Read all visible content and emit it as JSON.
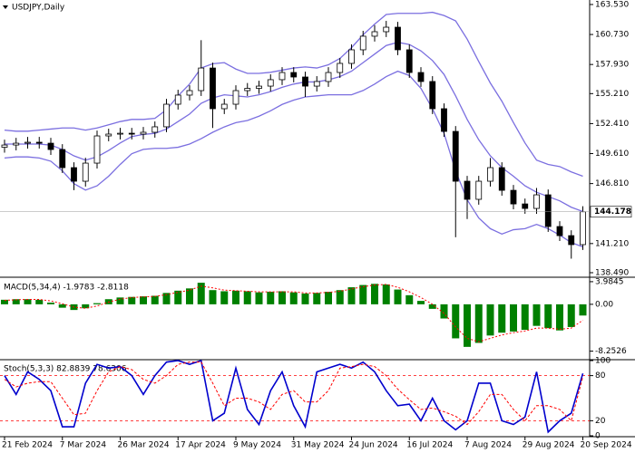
{
  "chart_data": [
    {
      "type": "candlestick",
      "title": "USDJPY,Daily",
      "categories": [
        "21 Feb 2024",
        null,
        null,
        null,
        null,
        "7 Mar 2024",
        null,
        null,
        null,
        null,
        "26 Mar 2024",
        null,
        null,
        null,
        null,
        "17 Apr 2024",
        null,
        null,
        null,
        null,
        "9 May 2024",
        null,
        null,
        null,
        null,
        "31 May 2024",
        null,
        null,
        null,
        null,
        "24 Jun 2024",
        null,
        null,
        null,
        null,
        "16 Jul 2024",
        null,
        null,
        null,
        null,
        "7 Aug 2024",
        null,
        null,
        null,
        null,
        "29 Aug 2024",
        null,
        null,
        null,
        null,
        "20 Sep 2024"
      ],
      "open": [
        150.2,
        150.41,
        150.58,
        150.67,
        150.58,
        149.99,
        148.3,
        147.03,
        148.72,
        151.26,
        151.43,
        151.51,
        151.43,
        151.6,
        152.11,
        154.22,
        155.07,
        155.49,
        157.6,
        153.8,
        154.22,
        155.49,
        155.7,
        155.91,
        156.51,
        157.18,
        156.76,
        155.91,
        156.34,
        157.18,
        158.03,
        159.3,
        160.57,
        160.99,
        161.41,
        159.3,
        157.18,
        156.34,
        153.8,
        151.68,
        147.03,
        145.34,
        147.03,
        148.3,
        146.18,
        144.91,
        144.49,
        145.76,
        142.8,
        141.95,
        141.11
      ],
      "high": [
        150.91,
        151.08,
        151.17,
        151.17,
        151.08,
        150.49,
        148.8,
        149.22,
        151.76,
        151.93,
        152.01,
        152.01,
        152.1,
        152.61,
        154.72,
        155.57,
        155.99,
        160.2,
        158.1,
        154.72,
        155.99,
        156.2,
        156.41,
        157.01,
        157.68,
        157.68,
        157.26,
        156.84,
        157.68,
        158.53,
        159.8,
        161.07,
        161.6,
        162.0,
        161.91,
        159.8,
        157.68,
        156.84,
        154.3,
        152.18,
        147.53,
        147.53,
        149.2,
        148.8,
        146.68,
        145.41,
        146.4,
        146.26,
        143.3,
        142.45,
        144.7
      ],
      "low": [
        149.7,
        149.91,
        150.08,
        150.08,
        149.49,
        147.8,
        146.2,
        146.53,
        148.22,
        150.76,
        150.93,
        150.93,
        150.93,
        151.1,
        151.61,
        153.72,
        154.57,
        154.99,
        152.0,
        153.3,
        153.72,
        154.99,
        155.2,
        155.41,
        156.01,
        156.26,
        154.9,
        155.41,
        155.84,
        156.68,
        157.53,
        158.8,
        160.07,
        160.49,
        158.8,
        156.68,
        155.84,
        153.3,
        151.18,
        141.8,
        143.5,
        144.84,
        146.53,
        145.68,
        144.41,
        143.99,
        143.99,
        142.3,
        141.45,
        139.8,
        140.61
      ],
      "close": [
        150.41,
        150.58,
        150.67,
        150.58,
        149.99,
        148.3,
        147.03,
        148.72,
        151.26,
        151.43,
        151.51,
        151.43,
        151.6,
        152.11,
        154.22,
        155.07,
        155.49,
        157.6,
        153.8,
        154.22,
        155.49,
        155.7,
        155.91,
        156.51,
        157.18,
        156.76,
        155.91,
        156.34,
        157.18,
        158.03,
        159.3,
        160.57,
        160.99,
        161.41,
        159.3,
        157.18,
        156.34,
        153.8,
        151.68,
        147.03,
        145.34,
        147.03,
        148.3,
        146.18,
        144.91,
        144.49,
        145.76,
        142.8,
        141.95,
        141.11,
        144.178
      ],
      "up_color": "#ffffff",
      "down_color": "#000000",
      "wick_color": "#000000",
      "bands": [
        {
          "color": "#7b6fe0",
          "values": [
            151.8,
            151.7,
            151.7,
            151.8,
            151.9,
            152.0,
            152.0,
            151.8,
            152.0,
            152.3,
            152.6,
            152.8,
            152.8,
            152.9,
            153.7,
            155.0,
            156.1,
            157.6,
            158.0,
            158.1,
            157.5,
            157.1,
            157.1,
            157.2,
            157.4,
            157.6,
            157.7,
            157.6,
            157.9,
            158.5,
            159.5,
            160.7,
            161.7,
            162.6,
            162.7,
            162.7,
            162.7,
            162.8,
            162.5,
            162.0,
            160.3,
            158.2,
            156.2,
            154.5,
            152.5,
            150.6,
            149.0,
            148.6,
            148.4,
            147.9,
            147.5
          ]
        },
        {
          "color": "#7b6fe0",
          "values": [
            150.5,
            150.5,
            150.5,
            150.5,
            150.4,
            150.0,
            149.4,
            149.0,
            149.3,
            149.9,
            150.6,
            151.2,
            151.4,
            151.5,
            151.9,
            152.6,
            153.3,
            154.3,
            154.8,
            155.1,
            155.0,
            154.9,
            155.1,
            155.4,
            155.8,
            156.1,
            156.3,
            156.3,
            156.5,
            156.8,
            157.3,
            158.1,
            158.9,
            159.7,
            160.0,
            159.8,
            159.2,
            158.3,
            157.0,
            155.0,
            152.8,
            150.9,
            149.4,
            148.3,
            147.5,
            146.6,
            146.0,
            145.6,
            145.2,
            144.6,
            144.2
          ]
        },
        {
          "color": "#7b6fe0",
          "values": [
            149.2,
            149.3,
            149.3,
            149.2,
            148.9,
            148.0,
            146.8,
            146.2,
            146.6,
            147.5,
            148.6,
            149.6,
            150.0,
            150.1,
            150.1,
            150.2,
            150.5,
            151.0,
            151.6,
            152.1,
            152.5,
            152.7,
            153.1,
            153.6,
            154.2,
            154.6,
            154.9,
            155.0,
            155.1,
            155.1,
            155.1,
            155.5,
            156.1,
            156.8,
            157.3,
            156.9,
            155.7,
            153.8,
            151.5,
            148.0,
            145.3,
            143.6,
            142.6,
            142.1,
            142.5,
            142.6,
            143.0,
            142.6,
            142.0,
            141.3,
            140.9
          ]
        }
      ],
      "ylim": [
        138.15,
        163.95
      ],
      "yticks": [
        {
          "value": 163.53,
          "label": "163.530"
        },
        {
          "value": 160.73,
          "label": "160.730"
        },
        {
          "value": 157.93,
          "label": "157.930"
        },
        {
          "value": 155.21,
          "label": "155.210"
        },
        {
          "value": 152.41,
          "label": "152.410"
        },
        {
          "value": 149.61,
          "label": "149.610"
        },
        {
          "value": 146.81,
          "label": "146.810"
        },
        {
          "value": 141.21,
          "label": "141.210"
        },
        {
          "value": 138.49,
          "label": "138.490"
        }
      ]
    },
    {
      "type": "bar",
      "title": "MACD(5,34,4) -1.9783 -2.8118",
      "color": "#008000",
      "values": [
        0.8,
        0.9,
        0.9,
        0.8,
        0.3,
        -0.6,
        -1.0,
        -0.7,
        0.2,
        0.9,
        1.2,
        1.3,
        1.4,
        1.5,
        2.0,
        2.4,
        2.8,
        3.8,
        2.5,
        2.3,
        2.4,
        2.3,
        2.1,
        2.2,
        2.3,
        2.1,
        1.9,
        2.0,
        2.2,
        2.5,
        3.0,
        3.4,
        3.6,
        3.5,
        2.6,
        1.6,
        0.6,
        -0.8,
        -2.5,
        -6.0,
        -7.5,
        -6.8,
        -5.5,
        -5.0,
        -4.8,
        -4.5,
        -3.8,
        -4.2,
        -4.6,
        -4.0,
        -1.9783
      ],
      "signal": {
        "color": "#ff0000",
        "values": [
          0.7,
          0.8,
          0.85,
          0.85,
          0.6,
          0.1,
          -0.5,
          -0.7,
          -0.3,
          0.4,
          0.9,
          1.2,
          1.3,
          1.4,
          1.7,
          2.1,
          2.5,
          3.2,
          2.9,
          2.5,
          2.4,
          2.3,
          2.2,
          2.2,
          2.2,
          2.2,
          2.0,
          2.0,
          2.1,
          2.3,
          2.7,
          3.1,
          3.4,
          3.5,
          3.0,
          2.2,
          1.2,
          0.0,
          -1.6,
          -4.0,
          -6.0,
          -6.6,
          -6.0,
          -5.4,
          -5.0,
          -4.7,
          -4.2,
          -4.2,
          -4.4,
          -4.2,
          -2.8118
        ]
      },
      "ylim": [
        -9.6,
        4.45
      ],
      "yticks": [
        3.9845,
        {
          "value": 0,
          "label": "0.00"
        },
        -8.2526
      ]
    },
    {
      "type": "line",
      "title": "Stoch(5,3,3) 82.8839 78.6306",
      "series": [
        {
          "color": "#0000cd",
          "values": [
            80,
            55,
            85,
            75,
            60,
            12,
            12,
            70,
            95,
            90,
            92,
            80,
            55,
            80,
            98,
            100,
            95,
            100,
            20,
            30,
            90,
            35,
            15,
            60,
            85,
            40,
            12,
            85,
            90,
            95,
            90,
            98,
            85,
            60,
            40,
            42,
            20,
            50,
            20,
            8,
            20,
            70,
            70,
            20,
            15,
            25,
            85,
            5,
            20,
            30,
            82.8839
          ]
        },
        {
          "color": "#ff0000",
          "values": [
            75,
            65,
            70,
            72,
            72,
            50,
            28,
            30,
            60,
            85,
            92,
            88,
            75,
            70,
            80,
            95,
            98,
            98,
            70,
            40,
            50,
            50,
            45,
            35,
            55,
            60,
            45,
            45,
            60,
            90,
            92,
            95,
            92,
            80,
            62,
            48,
            35,
            37,
            32,
            26,
            15,
            32,
            55,
            55,
            35,
            20,
            40,
            40,
            35,
            20,
            78.6306
          ]
        }
      ],
      "levels": [
        20,
        80
      ],
      "level_color": "#ff0000",
      "ylim": [
        0,
        100
      ],
      "yticks": [
        100,
        80,
        20,
        0
      ]
    }
  ]
}
